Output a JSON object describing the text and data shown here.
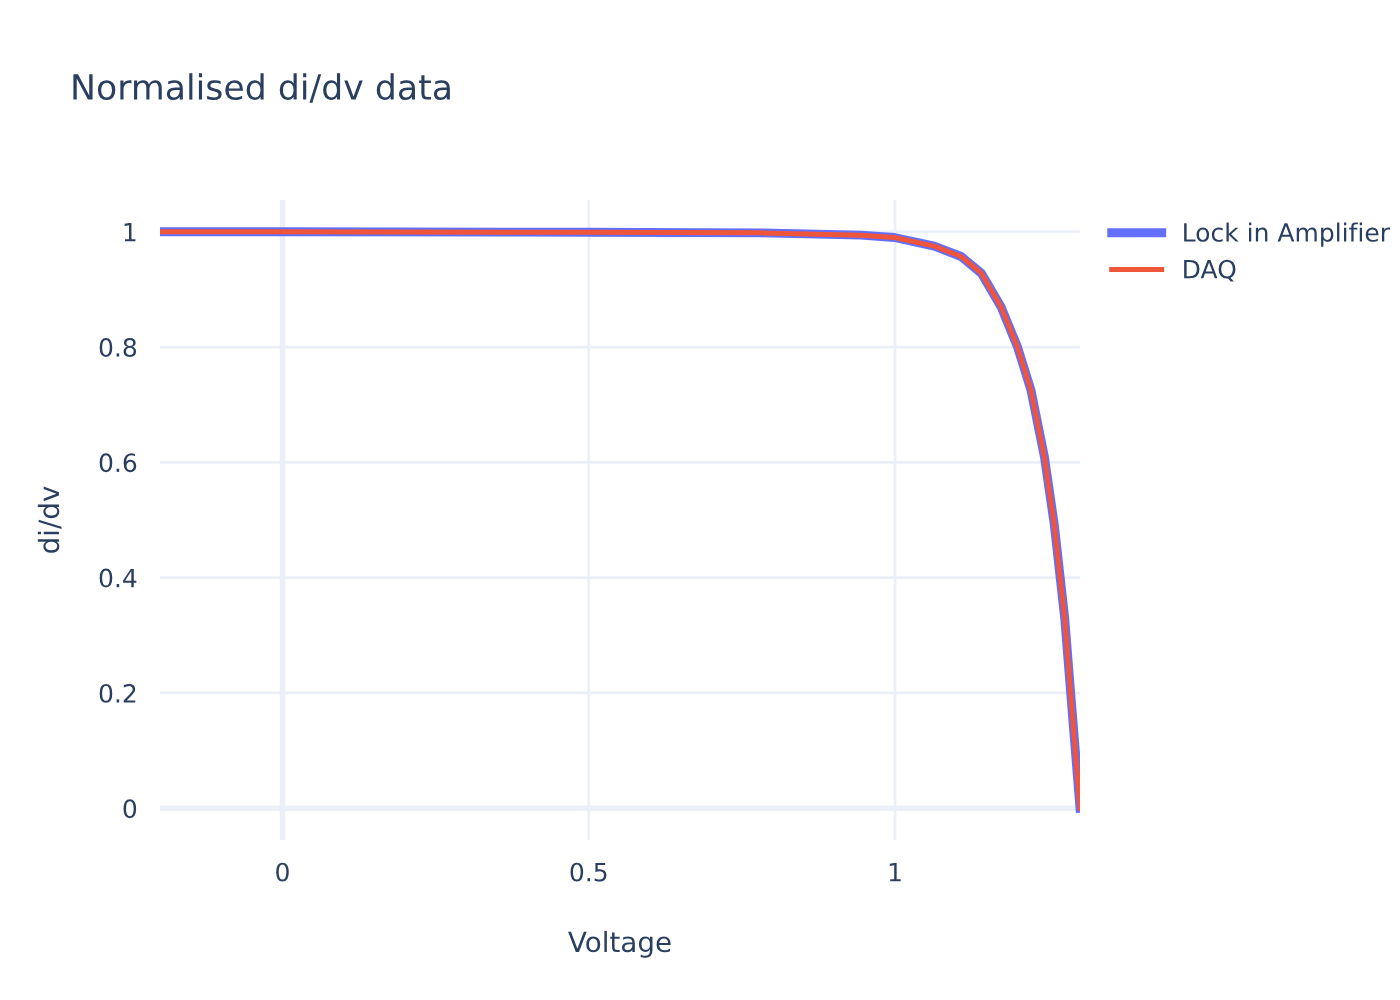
{
  "chart_data": {
    "type": "line",
    "title": "Normalised di/dv data",
    "xlabel": "Voltage",
    "ylabel": "di/dv",
    "x": [
      -0.2,
      0.0,
      0.5,
      0.781,
      0.944,
      0.999,
      1.064,
      1.108,
      1.141,
      1.173,
      1.2,
      1.222,
      1.244,
      1.26,
      1.277,
      1.291,
      1.302
    ],
    "series": [
      {
        "name": "Lock in Amplifier",
        "color": "#636efa",
        "values": [
          1.0,
          1.0,
          0.999,
          0.998,
          0.994,
          0.99,
          0.975,
          0.957,
          0.928,
          0.87,
          0.8,
          0.725,
          0.609,
          0.492,
          0.33,
          0.144,
          0.0
        ]
      },
      {
        "name": "DAQ",
        "color": "#ef553b",
        "values": [
          1.0,
          1.0,
          0.999,
          0.998,
          0.994,
          0.99,
          0.975,
          0.957,
          0.928,
          0.87,
          0.8,
          0.725,
          0.609,
          0.492,
          0.33,
          0.144,
          0.0
        ]
      }
    ],
    "xlim": [
      -0.2,
      1.302
    ],
    "ylim": [
      -0.055,
      1.055
    ],
    "xticks": [
      0,
      0.5,
      1
    ],
    "yticks": [
      0,
      0.2,
      0.4,
      0.6,
      0.8,
      1
    ],
    "grid": true,
    "legend": "top right",
    "marker": "none",
    "line_style": "solid"
  }
}
